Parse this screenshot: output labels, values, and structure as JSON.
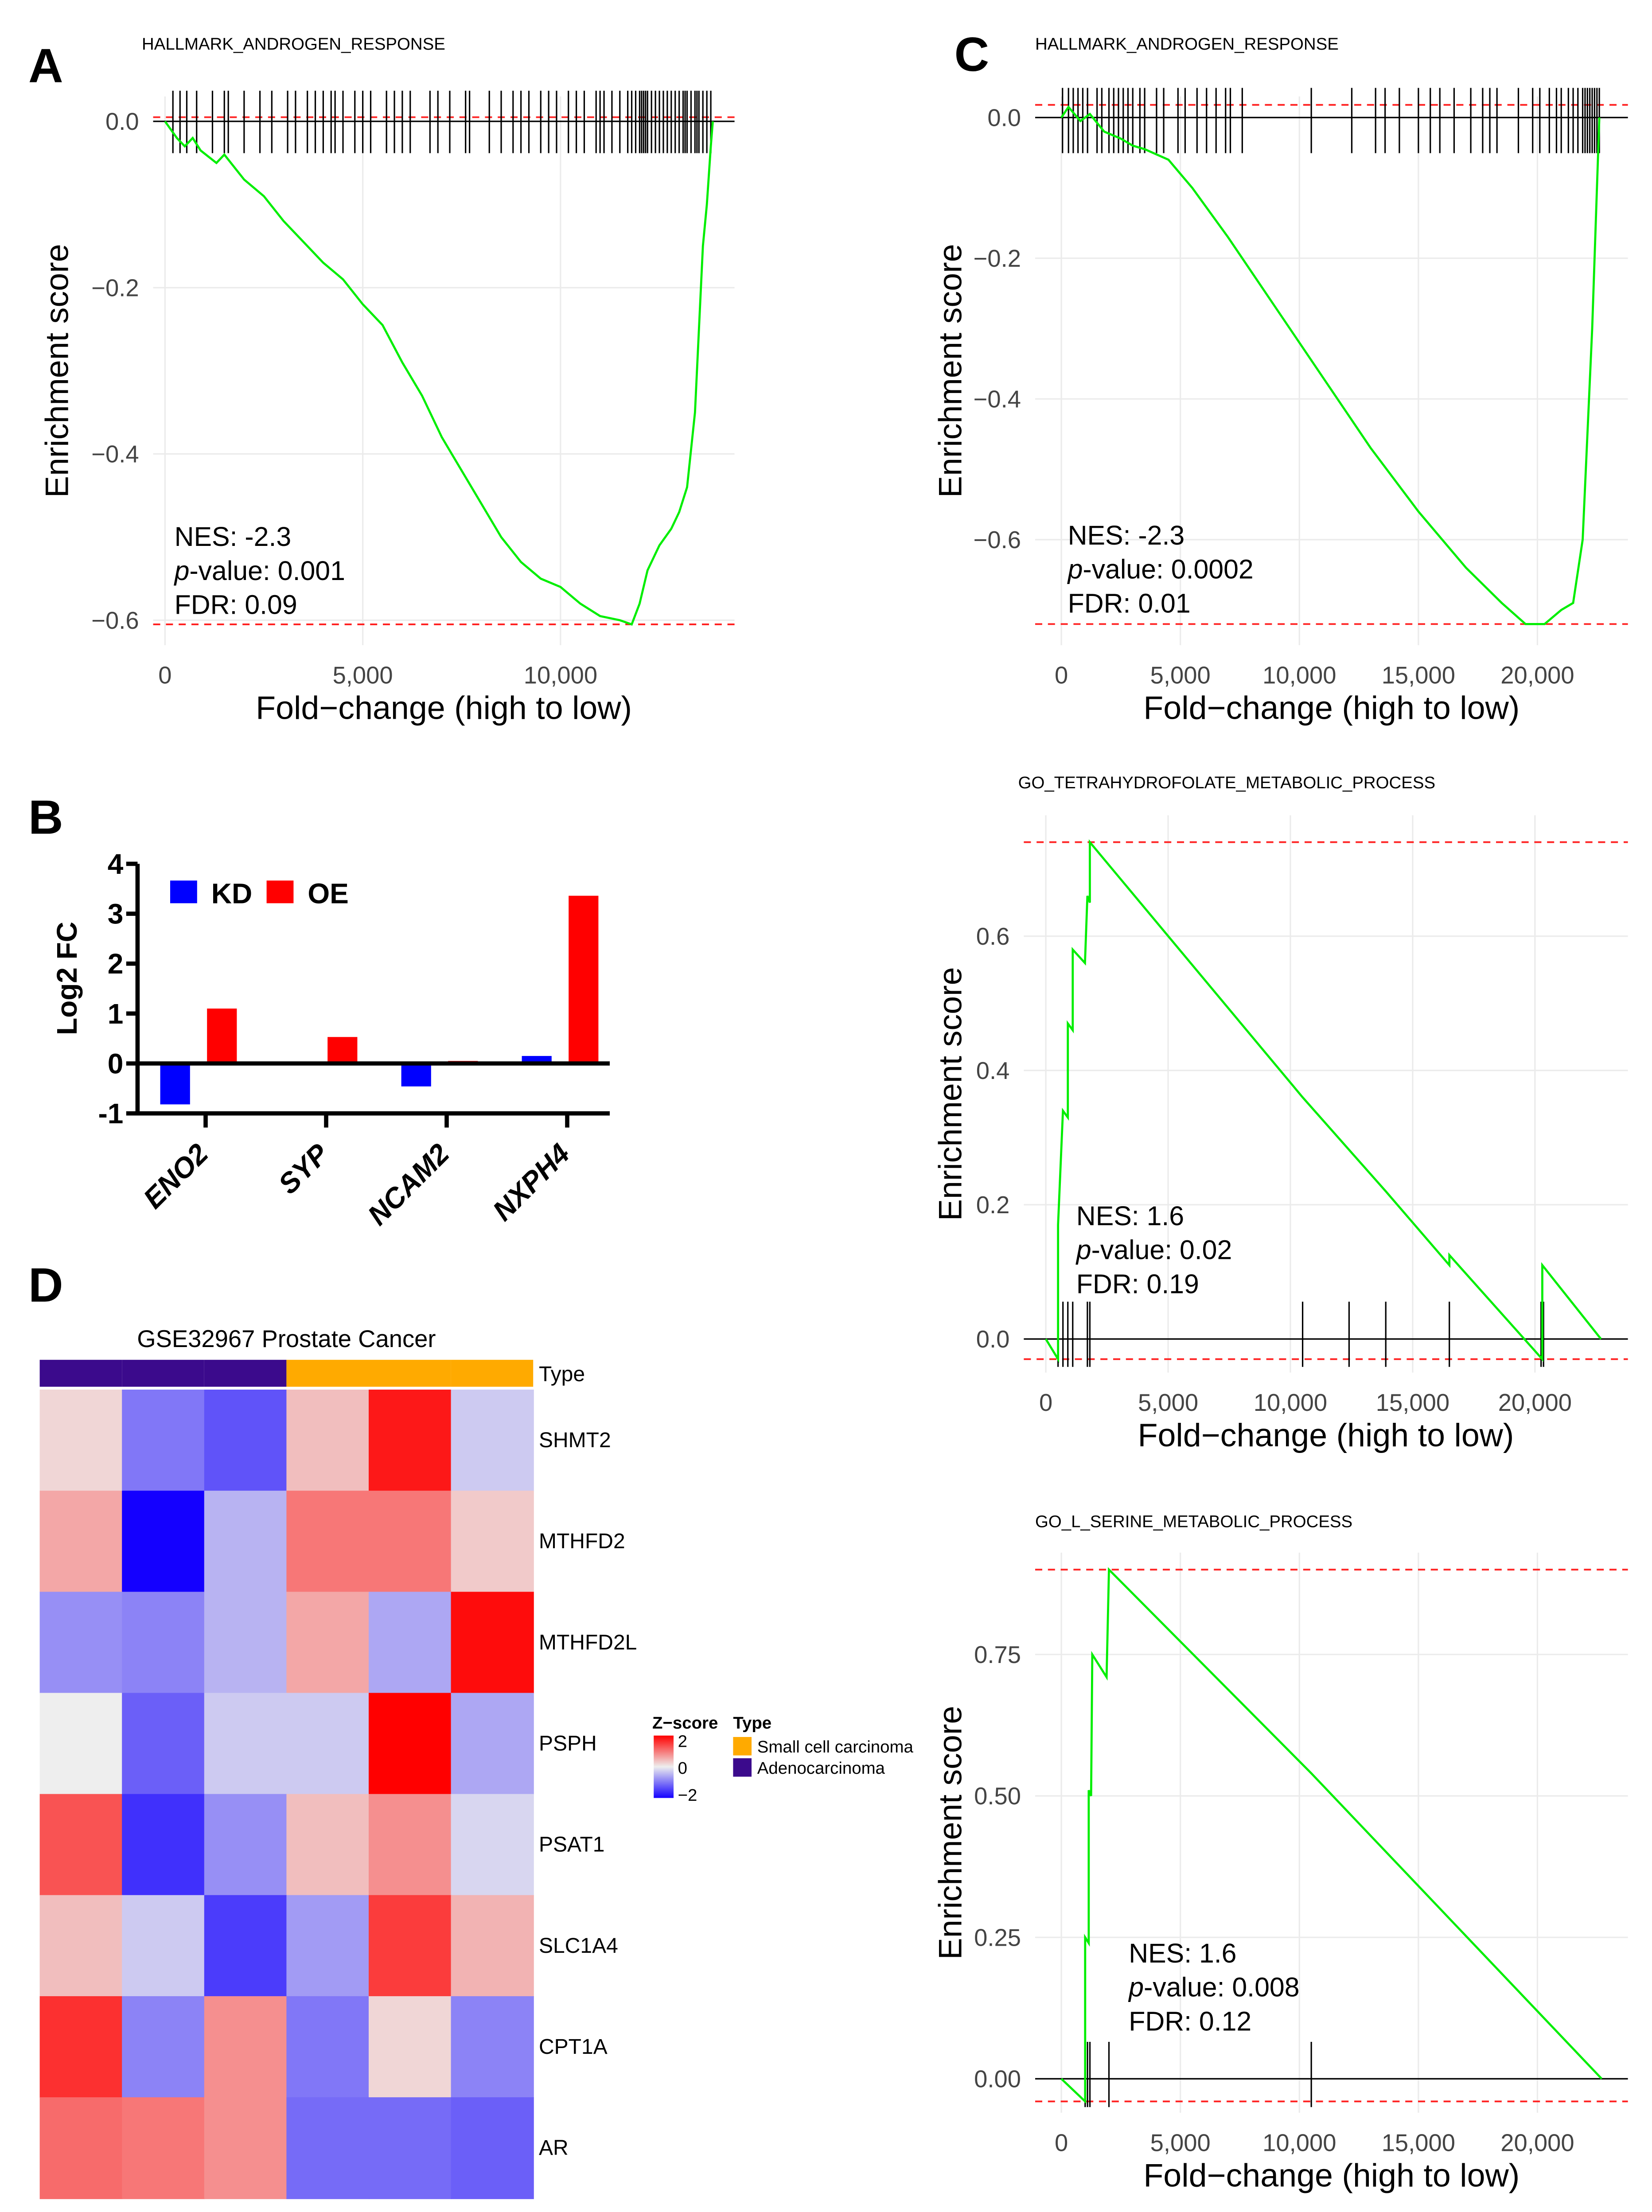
{
  "panels": {
    "A": "A",
    "B": "B",
    "C": "C",
    "D": "D"
  },
  "chart_data": [
    {
      "id": "gseaA",
      "type": "line",
      "title": "HALLMARK_ANDROGEN_RESPONSE",
      "xlabel": "Fold−change (high to low)",
      "ylabel": "Enrichment score",
      "xticks": [
        "0",
        "5,000",
        "10,000"
      ],
      "xtick_values": [
        0,
        5000,
        10000
      ],
      "yticks": [
        "0.0",
        "−0.2",
        "−0.4",
        "−0.6"
      ],
      "ytick_values": [
        0,
        -0.2,
        -0.4,
        -0.6
      ],
      "xlim": [
        -300,
        14400
      ],
      "ylim": [
        -0.63,
        0.03
      ],
      "dashed_lines": [
        0.005,
        -0.605
      ],
      "stats": {
        "nes": "NES: -2.3",
        "pvalue_label": "p",
        "pvalue": "-value: 0.001",
        "fdr": "FDR: 0.09"
      },
      "curve": [
        [
          0,
          0
        ],
        [
          300,
          -0.02
        ],
        [
          500,
          -0.03
        ],
        [
          700,
          -0.02
        ],
        [
          900,
          -0.035
        ],
        [
          1300,
          -0.05
        ],
        [
          1500,
          -0.04
        ],
        [
          2000,
          -0.07
        ],
        [
          2500,
          -0.09
        ],
        [
          3000,
          -0.12
        ],
        [
          3500,
          -0.145
        ],
        [
          4000,
          -0.17
        ],
        [
          4500,
          -0.19
        ],
        [
          5000,
          -0.22
        ],
        [
          5500,
          -0.245
        ],
        [
          6000,
          -0.29
        ],
        [
          6500,
          -0.33
        ],
        [
          7000,
          -0.38
        ],
        [
          7500,
          -0.42
        ],
        [
          8000,
          -0.46
        ],
        [
          8500,
          -0.5
        ],
        [
          9000,
          -0.53
        ],
        [
          9500,
          -0.55
        ],
        [
          10000,
          -0.56
        ],
        [
          10500,
          -0.58
        ],
        [
          11000,
          -0.595
        ],
        [
          11500,
          -0.6
        ],
        [
          11800,
          -0.605
        ],
        [
          12000,
          -0.58
        ],
        [
          12200,
          -0.54
        ],
        [
          12500,
          -0.51
        ],
        [
          12800,
          -0.49
        ],
        [
          13000,
          -0.47
        ],
        [
          13200,
          -0.44
        ],
        [
          13400,
          -0.35
        ],
        [
          13500,
          -0.25
        ],
        [
          13600,
          -0.15
        ],
        [
          13700,
          -0.1
        ],
        [
          13800,
          -0.03
        ],
        [
          13850,
          0
        ]
      ],
      "hits": [
        200,
        380,
        550,
        800,
        1200,
        1500,
        1600,
        2000,
        2400,
        2700,
        3100,
        3300,
        3600,
        3800,
        4000,
        4200,
        4300,
        4500,
        4800,
        5000,
        5200,
        5600,
        5800,
        6000,
        6200,
        6700,
        6900,
        7200,
        7600,
        7700,
        8200,
        8500,
        8800,
        9000,
        9200,
        9500,
        9700,
        9900,
        10200,
        10400,
        10600,
        10900,
        11000,
        11100,
        11300,
        11500,
        11700,
        11800,
        11900,
        12000,
        12050,
        12100,
        12150,
        12200,
        12300,
        12400,
        12500,
        12600,
        12700,
        12800,
        12900,
        13000,
        13100,
        13150,
        13200,
        13300,
        13400,
        13450,
        13500,
        13600,
        13700,
        13800
      ]
    },
    {
      "id": "gseaC",
      "type": "line",
      "title": "HALLMARK_ANDROGEN_RESPONSE",
      "xlabel": "Fold−change (high to low)",
      "ylabel": "Enrichment score",
      "xticks": [
        "0",
        "5,000",
        "10,000",
        "15,000",
        "20,000"
      ],
      "xtick_values": [
        0,
        5000,
        10000,
        15000,
        20000
      ],
      "yticks": [
        "0.0",
        "−0.2",
        "−0.4",
        "−0.6"
      ],
      "ytick_values": [
        0,
        -0.2,
        -0.4,
        -0.6
      ],
      "xlim": [
        -1100,
        23800
      ],
      "ylim": [
        -0.75,
        0.03
      ],
      "dashed_lines": [
        0.018,
        -0.72
      ],
      "stats": {
        "nes": "NES: -2.3",
        "pvalue_label": "p",
        "pvalue": "-value: 0.0002",
        "fdr": "FDR: 0.01"
      },
      "curve": [
        [
          0,
          0
        ],
        [
          300,
          0.015
        ],
        [
          800,
          -0.005
        ],
        [
          1200,
          0.005
        ],
        [
          1800,
          -0.02
        ],
        [
          2500,
          -0.03
        ],
        [
          3000,
          -0.04
        ],
        [
          3500,
          -0.045
        ],
        [
          4500,
          -0.06
        ],
        [
          5500,
          -0.1
        ],
        [
          7000,
          -0.17
        ],
        [
          9000,
          -0.27
        ],
        [
          11000,
          -0.37
        ],
        [
          13000,
          -0.47
        ],
        [
          15000,
          -0.56
        ],
        [
          17000,
          -0.64
        ],
        [
          18500,
          -0.69
        ],
        [
          19500,
          -0.72
        ],
        [
          20300,
          -0.72
        ],
        [
          21000,
          -0.7
        ],
        [
          21500,
          -0.69
        ],
        [
          21900,
          -0.6
        ],
        [
          22100,
          -0.45
        ],
        [
          22300,
          -0.3
        ],
        [
          22500,
          -0.1
        ],
        [
          22600,
          0
        ]
      ],
      "hits": [
        50,
        300,
        500,
        700,
        900,
        1100,
        1500,
        1700,
        2000,
        2200,
        2400,
        2600,
        2800,
        3000,
        3300,
        3500,
        4000,
        4300,
        4900,
        5200,
        5700,
        6100,
        6500,
        6900,
        7100,
        7600,
        10500,
        12200,
        13200,
        13600,
        14200,
        15000,
        15500,
        15900,
        16500,
        17200,
        17700,
        18000,
        18300,
        19200,
        19800,
        20100,
        20500,
        20800,
        21000,
        21300,
        21500,
        21700,
        21900,
        22000,
        22100,
        22200,
        22300,
        22400,
        22500,
        22600
      ]
    },
    {
      "id": "gseaThf",
      "type": "line",
      "title": "GO_TETRAHYDROFOLATE_METABOLIC_PROCESS",
      "xlabel": "Fold−change (high to low)",
      "ylabel": "Enrichment score",
      "xticks": [
        "0",
        "5,000",
        "10,000",
        "15,000",
        "20,000"
      ],
      "xtick_values": [
        0,
        5000,
        10000,
        15000,
        20000
      ],
      "yticks": [
        "0.0",
        "0.2",
        "0.4",
        "0.6"
      ],
      "ytick_values": [
        0,
        0.2,
        0.4,
        0.6
      ],
      "xlim": [
        -900,
        23800
      ],
      "ylim": [
        -0.05,
        0.78
      ],
      "dashed_lines": [
        0.74,
        -0.03
      ],
      "stats": {
        "nes": "NES: 1.6",
        "pvalue_label": "p",
        "pvalue": "-value: 0.02",
        "fdr": "FDR: 0.19"
      },
      "curve": [
        [
          0,
          0
        ],
        [
          500,
          -0.03
        ],
        [
          500,
          0.17
        ],
        [
          700,
          0.34
        ],
        [
          900,
          0.33
        ],
        [
          900,
          0.47
        ],
        [
          1100,
          0.46
        ],
        [
          1100,
          0.58
        ],
        [
          1600,
          0.56
        ],
        [
          1700,
          0.66
        ],
        [
          1800,
          0.65
        ],
        [
          1800,
          0.74
        ],
        [
          10500,
          0.36
        ],
        [
          13900,
          0.22
        ],
        [
          16500,
          0.11
        ],
        [
          16500,
          0.125
        ],
        [
          20300,
          -0.03
        ],
        [
          20300,
          0.11
        ],
        [
          22700,
          0
        ]
      ],
      "hits": [
        500,
        700,
        900,
        1100,
        1700,
        1800,
        10500,
        12400,
        13900,
        16500,
        20250,
        20350
      ]
    },
    {
      "id": "gseaSer",
      "type": "line",
      "title": "GO_L_SERINE_METABOLIC_PROCESS",
      "xlabel": "Fold−change (high to low)",
      "ylabel": "Enrichment score",
      "xticks": [
        "0",
        "5,000",
        "10,000",
        "15,000",
        "20,000"
      ],
      "xtick_values": [
        0,
        5000,
        10000,
        15000,
        20000
      ],
      "yticks": [
        "0.00",
        "0.25",
        "0.50",
        "0.75"
      ],
      "ytick_values": [
        0,
        0.25,
        0.5,
        0.75
      ],
      "xlim": [
        -1100,
        23800
      ],
      "ylim": [
        -0.06,
        0.93
      ],
      "dashed_lines": [
        0.9,
        -0.04
      ],
      "stats": {
        "nes": "NES: 1.6",
        "pvalue_label": "p",
        "pvalue": "-value: 0.008",
        "fdr": "FDR: 0.12"
      },
      "curve": [
        [
          0,
          0
        ],
        [
          1000,
          -0.04
        ],
        [
          1000,
          0.25
        ],
        [
          1150,
          0.24
        ],
        [
          1150,
          0.51
        ],
        [
          1250,
          0.5
        ],
        [
          1300,
          0.75
        ],
        [
          1900,
          0.71
        ],
        [
          2000,
          0.9
        ],
        [
          10500,
          0.54
        ],
        [
          22700,
          0
        ]
      ],
      "hits": [
        1000,
        1100,
        1200,
        2000,
        10500
      ]
    },
    {
      "id": "barB",
      "type": "bar",
      "categories": [
        "ENO2",
        "SYP",
        "NCAM2",
        "NXPH4"
      ],
      "series": [
        {
          "name": "KD",
          "color": "#0000ff",
          "values": [
            -0.82,
            0.03,
            -0.46,
            0.15
          ]
        },
        {
          "name": "OE",
          "color": "#ff0000",
          "values": [
            1.1,
            0.53,
            0.05,
            3.36
          ]
        }
      ],
      "ylabel": "Log2 FC",
      "ylim": [
        -1,
        4
      ],
      "yticks": [
        "-1",
        "0",
        "1",
        "2",
        "3",
        "4"
      ],
      "ytick_values": [
        -1,
        0,
        1,
        2,
        3,
        4
      ],
      "legend_placement": "top-left"
    },
    {
      "id": "heatD",
      "type": "heatmap",
      "title": "GSE32967 Prostate Cancer",
      "annotation_label": "Type",
      "sample_types": [
        "Adenocarcinoma",
        "Adenocarcinoma",
        "Adenocarcinoma",
        "Small cell carcinoma",
        "Small cell carcinoma",
        "Small cell carcinoma"
      ],
      "type_colors": {
        "Small cell carcinoma": "#ffaa00",
        "Adenocarcinoma": "#3b0a8c"
      },
      "rows": [
        "SHMT2",
        "MTHFD2",
        "MTHFD2L",
        "PSPH",
        "PSAT1",
        "SLC1A4",
        "CPT1A",
        "AR"
      ],
      "values": [
        [
          0.2,
          -1.0,
          -1.3,
          0.4,
          1.8,
          -0.3
        ],
        [
          0.6,
          -2.0,
          -0.5,
          1.0,
          1.0,
          0.3
        ],
        [
          -0.8,
          -0.9,
          -0.5,
          0.6,
          -0.6,
          1.9
        ],
        [
          0.0,
          -1.2,
          -0.3,
          -0.3,
          2.0,
          -0.6
        ],
        [
          1.3,
          -1.6,
          -0.8,
          0.4,
          0.8,
          -0.2
        ],
        [
          0.4,
          -0.3,
          -1.5,
          -0.7,
          1.5,
          0.5
        ],
        [
          1.6,
          -0.9,
          0.8,
          -1.0,
          0.2,
          -0.9
        ],
        [
          1.1,
          1.0,
          0.8,
          -1.1,
          -1.1,
          -1.2
        ]
      ],
      "legend": {
        "title": "Z−score",
        "ticks": [
          "2",
          "0",
          "−2"
        ],
        "type_title": "Type",
        "types": [
          "Small cell carcinoma",
          "Adenocarcinoma"
        ]
      }
    }
  ]
}
